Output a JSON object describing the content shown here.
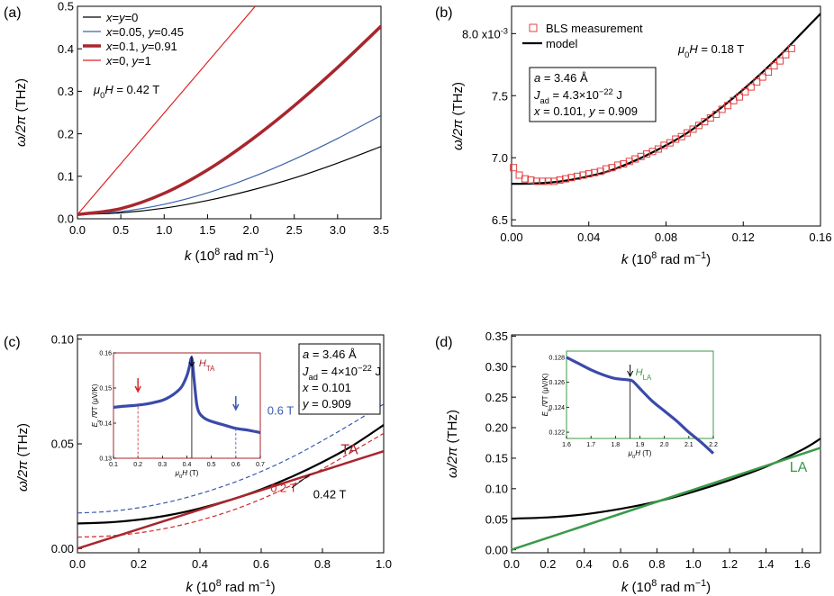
{
  "chart_data": [
    {
      "panel_label": "(a)",
      "type": "line",
      "xlabel_main": "k",
      "xlabel_unit_pre": " (10",
      "xlabel_unit_exp": "8",
      "xlabel_unit_post": " rad m",
      "xlabel_unit_exp2": "−1",
      "xlabel_close": ")",
      "ylabel_main": "ω/2π",
      "ylabel_unit": " (THz)",
      "xlim": [
        0,
        3.5
      ],
      "ylim": [
        0,
        0.5
      ],
      "xticks": [
        0.0,
        0.5,
        1.0,
        1.5,
        2.0,
        2.5,
        3.0,
        3.5
      ],
      "xtick_labels": [
        "0.0",
        "0.5",
        "1.0",
        "1.5",
        "2.0",
        "2.5",
        "3.0",
        "3.5"
      ],
      "yticks": [
        0.0,
        0.1,
        0.2,
        0.3,
        0.4,
        0.5
      ],
      "ytick_labels": [
        "0.0",
        "0.1",
        "0.2",
        "0.3",
        "0.4",
        "0.5"
      ],
      "annotation_pre": "μ",
      "annotation_sub": "0",
      "annotation_post": "H = 0.42 T",
      "legend_position": "top-left",
      "series": [
        {
          "name": "x=y=0",
          "color": "#000000",
          "width": 1.2,
          "x": [
            0,
            0.5,
            1.0,
            1.5,
            2.0,
            2.5,
            3.0,
            3.5
          ],
          "y": [
            0.01,
            0.014,
            0.025,
            0.043,
            0.067,
            0.096,
            0.131,
            0.17
          ]
        },
        {
          "name": "x=0.05, y=0.45",
          "color": "#3a63a8",
          "width": 1.2,
          "x": [
            0,
            0.5,
            1.0,
            1.5,
            2.0,
            2.5,
            3.0,
            3.5
          ],
          "y": [
            0.01,
            0.017,
            0.034,
            0.061,
            0.097,
            0.14,
            0.189,
            0.243
          ]
        },
        {
          "name": "x=0.1, y=0.91",
          "color": "#a8262d",
          "width": 3.5,
          "x": [
            0,
            0.5,
            1.0,
            1.5,
            2.0,
            2.5,
            3.0,
            3.5
          ],
          "y": [
            0.01,
            0.024,
            0.06,
            0.115,
            0.185,
            0.266,
            0.356,
            0.453
          ]
        },
        {
          "name": "x=0, y=1",
          "color": "#e02020",
          "width": 1.2,
          "x": [
            0,
            2.05
          ],
          "y": [
            0.01,
            0.5
          ]
        }
      ],
      "legend_entries": [
        {
          "a": "x",
          "b": "=",
          "c": "y",
          "d": "=0",
          "e": "",
          "f": ""
        },
        {
          "a": "x",
          "b": "=0.05, ",
          "c": "y",
          "d": "=0.45",
          "e": "",
          "f": ""
        },
        {
          "a": "x",
          "b": "=0.1, ",
          "c": "y",
          "d": "=0.91",
          "e": "",
          "f": ""
        },
        {
          "a": "x",
          "b": "=0, ",
          "c": "y",
          "d": "=1",
          "e": "",
          "f": ""
        }
      ]
    },
    {
      "panel_label": "(b)",
      "type": "scatter",
      "xlim": [
        0,
        0.16
      ],
      "ylim": [
        6.45,
        8.22
      ],
      "xticks": [
        0.0,
        0.04,
        0.08,
        0.12,
        0.16
      ],
      "xtick_labels": [
        "0.00",
        "0.04",
        "0.08",
        "0.12",
        "0.16"
      ],
      "yticks": [
        6.5,
        7.0,
        7.5,
        8.0
      ],
      "ytick_labels": [
        "6.5",
        "7.0",
        "7.5",
        "8.0 x10"
      ],
      "ytick_exp": "-3",
      "annotation_pre": "μ",
      "annotation_sub": "0",
      "annotation_post": "H = 0.18 T",
      "legend": [
        "BLS measurement",
        "model"
      ],
      "box_lines": [
        {
          "pre": "a",
          "mid": " = 3.46 Å",
          "sub": "",
          "sup": "",
          "post": ""
        },
        {
          "pre": "J",
          "mid": "",
          "sub": "ad",
          "sup": "−22",
          "post": " = 4.3×10",
          "tail": " J"
        },
        {
          "pre": "x",
          "mid": " = 0.101, ",
          "pre2": "y",
          "mid2": " = 0.909"
        }
      ],
      "model": {
        "x": [
          0.0,
          0.01,
          0.02,
          0.03,
          0.04,
          0.05,
          0.06,
          0.07,
          0.08,
          0.09,
          0.1,
          0.11,
          0.12,
          0.13,
          0.14,
          0.15,
          0.16
        ],
        "y": [
          6.79,
          6.792,
          6.8,
          6.82,
          6.85,
          6.89,
          6.95,
          7.02,
          7.1,
          7.19,
          7.3,
          7.42,
          7.55,
          7.69,
          7.84,
          8.0,
          8.16
        ]
      },
      "measurement": {
        "x": [
          0.001,
          0.004,
          0.007,
          0.01,
          0.013,
          0.016,
          0.019,
          0.022,
          0.025,
          0.028,
          0.031,
          0.034,
          0.037,
          0.04,
          0.043,
          0.046,
          0.049,
          0.052,
          0.055,
          0.058,
          0.061,
          0.064,
          0.067,
          0.07,
          0.073,
          0.076,
          0.079,
          0.082,
          0.085,
          0.088,
          0.091,
          0.094,
          0.097,
          0.1,
          0.103,
          0.106,
          0.109,
          0.112,
          0.115,
          0.118,
          0.121,
          0.124,
          0.127,
          0.13,
          0.133,
          0.136,
          0.139,
          0.142,
          0.145
        ],
        "y": [
          6.92,
          6.86,
          6.83,
          6.82,
          6.81,
          6.81,
          6.81,
          6.81,
          6.82,
          6.83,
          6.84,
          6.85,
          6.86,
          6.87,
          6.88,
          6.89,
          6.91,
          6.92,
          6.94,
          6.95,
          6.97,
          6.99,
          7.01,
          7.03,
          7.05,
          7.07,
          7.1,
          7.12,
          7.15,
          7.17,
          7.2,
          7.23,
          7.26,
          7.29,
          7.32,
          7.35,
          7.39,
          7.42,
          7.46,
          7.49,
          7.53,
          7.57,
          7.61,
          7.65,
          7.69,
          7.74,
          7.78,
          7.83,
          7.88
        ]
      }
    },
    {
      "panel_label": "(c)",
      "type": "line",
      "xlim": [
        0,
        1.0
      ],
      "ylim": [
        -0.002,
        0.102
      ],
      "xticks": [
        0.0,
        0.2,
        0.4,
        0.6,
        0.8,
        1.0
      ],
      "xtick_labels": [
        "0.0",
        "0.2",
        "0.4",
        "0.6",
        "0.8",
        "1.0"
      ],
      "yticks": [
        0.0,
        0.05,
        0.1
      ],
      "ytick_labels": [
        "0.00",
        "0.05",
        "0.10"
      ],
      "label_06": "0.6 T",
      "label_02": "0.2 T",
      "label_042": "0.42 T",
      "label_TA": "TA",
      "box_lines": [
        "a = 3.46 Å",
        "J_ad = 4×10^−22 J",
        "x = 0.101",
        "y = 0.909"
      ],
      "box_a": " = 3.46 Å",
      "box_J_pre": " = 4×10",
      "box_J_exp": "−22",
      "box_J_post": " J",
      "box_x": " = 0.101",
      "box_y": " = 0.909",
      "series": [
        {
          "name": "0.42 T",
          "color": "#000000",
          "dash": false,
          "width": 2.2,
          "x": [
            0,
            0.1,
            0.2,
            0.3,
            0.4,
            0.5,
            0.6,
            0.7,
            0.8,
            0.9,
            1.0
          ],
          "y": [
            0.012,
            0.0125,
            0.0138,
            0.016,
            0.0192,
            0.0233,
            0.0283,
            0.0343,
            0.0413,
            0.0493,
            0.059
          ]
        },
        {
          "name": "0.6 T",
          "color": "#3a5ab0",
          "dash": true,
          "width": 1.2,
          "x": [
            0,
            0.1,
            0.2,
            0.3,
            0.4,
            0.5,
            0.6,
            0.7,
            0.8,
            0.9,
            1.0
          ],
          "y": [
            0.017,
            0.0177,
            0.0195,
            0.0223,
            0.0262,
            0.031,
            0.0368,
            0.0436,
            0.0515,
            0.06,
            0.069
          ]
        },
        {
          "name": "0.2 T",
          "color": "#d02828",
          "dash": true,
          "width": 1.2,
          "x": [
            0,
            0.1,
            0.2,
            0.3,
            0.4,
            0.5,
            0.6,
            0.7,
            0.8,
            0.9,
            1.0
          ],
          "y": [
            0.0055,
            0.006,
            0.0075,
            0.01,
            0.0135,
            0.018,
            0.0236,
            0.0303,
            0.038,
            0.0465,
            0.055
          ]
        },
        {
          "name": "TA",
          "color": "#a8262d",
          "dash": false,
          "width": 2.5,
          "x": [
            0,
            1.0
          ],
          "y": [
            0.0,
            0.0465
          ]
        }
      ],
      "inset": {
        "xlim": [
          0.1,
          0.7
        ],
        "ylim": [
          0.13,
          0.16
        ],
        "xticks": [
          0.1,
          0.2,
          0.3,
          0.4,
          0.5,
          0.6,
          0.7
        ],
        "xtick_labels": [
          "0.1",
          "0.2",
          "0.3",
          "0.4",
          "0.5",
          "0.6",
          "0.7"
        ],
        "yticks": [
          0.13,
          0.14,
          0.15,
          0.16
        ],
        "ytick_labels": [
          "0.13",
          "0.14",
          "0.15",
          "0.16"
        ],
        "ylabel_pre": "E",
        "ylabel_sub": "y",
        "ylabel_post": " /∇T (μV/K)",
        "xlabel_pre": "μ",
        "xlabel_sub": "0",
        "xlabel_post": "H (T)",
        "marker_label": "H",
        "marker_sub": "TA",
        "marker_x": 0.42,
        "red_arrow_x": 0.2,
        "blue_arrow_x": 0.6,
        "x": [
          0.1,
          0.14,
          0.18,
          0.22,
          0.26,
          0.3,
          0.33,
          0.36,
          0.38,
          0.4,
          0.41,
          0.42,
          0.43,
          0.44,
          0.45,
          0.47,
          0.5,
          0.55,
          0.6,
          0.65,
          0.7
        ],
        "y": [
          0.1445,
          0.1448,
          0.145,
          0.1453,
          0.1458,
          0.1465,
          0.1475,
          0.149,
          0.1505,
          0.1535,
          0.156,
          0.1585,
          0.152,
          0.1455,
          0.143,
          0.1415,
          0.1405,
          0.1395,
          0.1385,
          0.138,
          0.1373
        ]
      }
    },
    {
      "panel_label": "(d)",
      "type": "line",
      "xlim": [
        0,
        1.7
      ],
      "ylim": [
        -0.005,
        0.352
      ],
      "xticks": [
        0.0,
        0.2,
        0.4,
        0.6,
        0.8,
        1.0,
        1.2,
        1.4,
        1.6
      ],
      "xtick_labels": [
        "0.0",
        "0.2",
        "0.4",
        "0.6",
        "0.8",
        "1.0",
        "1.2",
        "1.4",
        "1.6"
      ],
      "yticks": [
        0.0,
        0.05,
        0.1,
        0.15,
        0.2,
        0.25,
        0.3,
        0.35
      ],
      "ytick_labels": [
        "0.00",
        "0.05",
        "0.10",
        "0.15",
        "0.20",
        "0.25",
        "0.30",
        "0.35"
      ],
      "label_LA": "LA",
      "series": [
        {
          "name": "model",
          "color": "#000000",
          "width": 2.2,
          "x": [
            0,
            0.2,
            0.4,
            0.6,
            0.8,
            1.0,
            1.2,
            1.4,
            1.6,
            1.7
          ],
          "y": [
            0.051,
            0.053,
            0.058,
            0.067,
            0.079,
            0.095,
            0.114,
            0.136,
            0.164,
            0.182
          ]
        },
        {
          "name": "LA",
          "color": "#3a9a48",
          "width": 2.5,
          "x": [
            0,
            1.7
          ],
          "y": [
            0.0,
            0.167
          ]
        }
      ],
      "inset": {
        "xlim": [
          1.6,
          2.2
        ],
        "ylim": [
          0.1215,
          0.1285
        ],
        "xticks": [
          1.6,
          1.7,
          1.8,
          1.9,
          2.0,
          2.1,
          2.2
        ],
        "xtick_labels": [
          "1.6",
          "1.7",
          "1.8",
          "1.9",
          "2.0",
          "2.1",
          "2.2"
        ],
        "yticks": [
          0.122,
          0.124,
          0.126,
          0.128
        ],
        "ytick_labels": [
          "0.122",
          "0.124",
          "0.126",
          "0.128"
        ],
        "marker_label": "H",
        "marker_sub": "LA",
        "marker_x": 1.86,
        "x": [
          1.6,
          1.65,
          1.7,
          1.75,
          1.8,
          1.85,
          1.87,
          1.9,
          1.95,
          2.0,
          2.05,
          2.1,
          2.15,
          2.2
        ],
        "y": [
          0.128,
          0.1275,
          0.127,
          0.1266,
          0.1263,
          0.1262,
          0.1261,
          0.1255,
          0.1245,
          0.1237,
          0.1229,
          0.122,
          0.1212,
          0.1203
        ]
      }
    }
  ]
}
